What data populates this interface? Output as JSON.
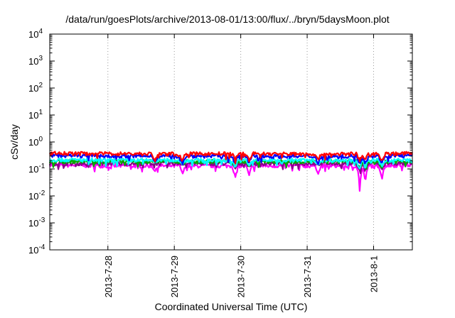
{
  "chart_data": {
    "type": "line",
    "title": "/data/run/goesPlots/archive/2013-08-01/13:00/flux/../bryn/5daysMoon.plot",
    "xlabel": "Coordinated Universal Time (UTC)",
    "ylabel": "cSv/day",
    "x_ticks": [
      "2013-7-28",
      "2013-7-29",
      "2013-7-30",
      "2013-7-31",
      "2013-8-1"
    ],
    "xlim": [
      "2013-07-27 03:00",
      "2013-08-01 14:00"
    ],
    "y_scale": "log",
    "ylim": [
      0.0001,
      10000
    ],
    "y_ticks": [
      {
        "base": "10",
        "exp": "-4",
        "value": 0.0001
      },
      {
        "base": "10",
        "exp": "-3",
        "value": 0.001
      },
      {
        "base": "10",
        "exp": "-2",
        "value": 0.01
      },
      {
        "base": "10",
        "exp": "-1",
        "value": 0.1
      },
      {
        "base": "10",
        "exp": "0",
        "value": 1
      },
      {
        "base": "10",
        "exp": "1",
        "value": 10
      },
      {
        "base": "10",
        "exp": "2",
        "value": 100
      },
      {
        "base": "10",
        "exp": "3",
        "value": 1000
      },
      {
        "base": "10",
        "exp": "4",
        "value": 10000
      }
    ],
    "grid": "vertical dotted at date ticks",
    "series": [
      {
        "color": "#ff0000",
        "baseline": 0.36,
        "x": [
          "2013-07-27 03:00",
          "2013-07-28 00:00",
          "2013-07-29 00:00",
          "2013-07-30 00:00",
          "2013-07-31 00:00",
          "2013-08-01 00:00",
          "2013-08-01 14:00"
        ],
        "y": [
          0.38,
          0.37,
          0.36,
          0.37,
          0.36,
          0.36,
          0.38
        ]
      },
      {
        "color": "#0000ff",
        "baseline": 0.3,
        "x": [
          "2013-07-27 03:00",
          "2013-07-28 00:00",
          "2013-07-29 00:00",
          "2013-07-30 00:00",
          "2013-07-31 00:00",
          "2013-08-01 00:00",
          "2013-08-01 14:00"
        ],
        "y": [
          0.32,
          0.3,
          0.3,
          0.3,
          0.29,
          0.3,
          0.31
        ]
      },
      {
        "color": "#00ffff",
        "baseline": 0.21,
        "x": [
          "2013-07-27 03:00",
          "2013-07-28 00:00",
          "2013-07-29 00:00",
          "2013-07-30 00:00",
          "2013-07-31 00:00",
          "2013-08-01 00:00",
          "2013-08-01 14:00"
        ],
        "y": [
          0.22,
          0.21,
          0.21,
          0.21,
          0.21,
          0.21,
          0.21
        ]
      },
      {
        "color": "#00aa00",
        "baseline": 0.19,
        "x": [
          "2013-07-27 03:00",
          "2013-07-28 00:00",
          "2013-07-29 00:00",
          "2013-07-30 00:00",
          "2013-07-31 00:00",
          "2013-08-01 00:00",
          "2013-08-01 14:00"
        ],
        "y": [
          0.19,
          0.19,
          0.19,
          0.19,
          0.19,
          0.19,
          0.19
        ]
      },
      {
        "color": "#8b008b",
        "baseline": 0.16,
        "x": [
          "2013-07-27 03:00",
          "2013-07-28 00:00",
          "2013-07-29 00:00",
          "2013-07-30 00:00",
          "2013-07-31 00:00",
          "2013-08-01 00:00",
          "2013-08-01 14:00"
        ],
        "y": [
          0.16,
          0.16,
          0.16,
          0.16,
          0.16,
          0.16,
          0.16
        ]
      },
      {
        "color": "#ff00ff",
        "baseline": 0.13,
        "x": [
          "2013-07-27 03:00",
          "2013-07-28 00:00",
          "2013-07-29 00:00",
          "2013-07-30 00:00",
          "2013-07-31 00:00",
          "2013-08-01 00:00",
          "2013-08-01 14:00"
        ],
        "y": [
          0.14,
          0.13,
          0.13,
          0.13,
          0.13,
          0.13,
          0.14
        ]
      }
    ],
    "dips": [
      {
        "x": "2013-07-28 17:00",
        "y": 0.08
      },
      {
        "x": "2013-07-29 03:00",
        "y": 0.065
      },
      {
        "x": "2013-07-29 22:00",
        "y": 0.045
      },
      {
        "x": "2013-07-30 03:00",
        "y": 0.055
      },
      {
        "x": "2013-07-31 04:00",
        "y": 0.065
      },
      {
        "x": "2013-07-31 19:00",
        "y": 0.013
      },
      {
        "x": "2013-07-31 21:00",
        "y": 0.03
      },
      {
        "x": "2013-08-01 03:00",
        "y": 0.04
      }
    ]
  }
}
